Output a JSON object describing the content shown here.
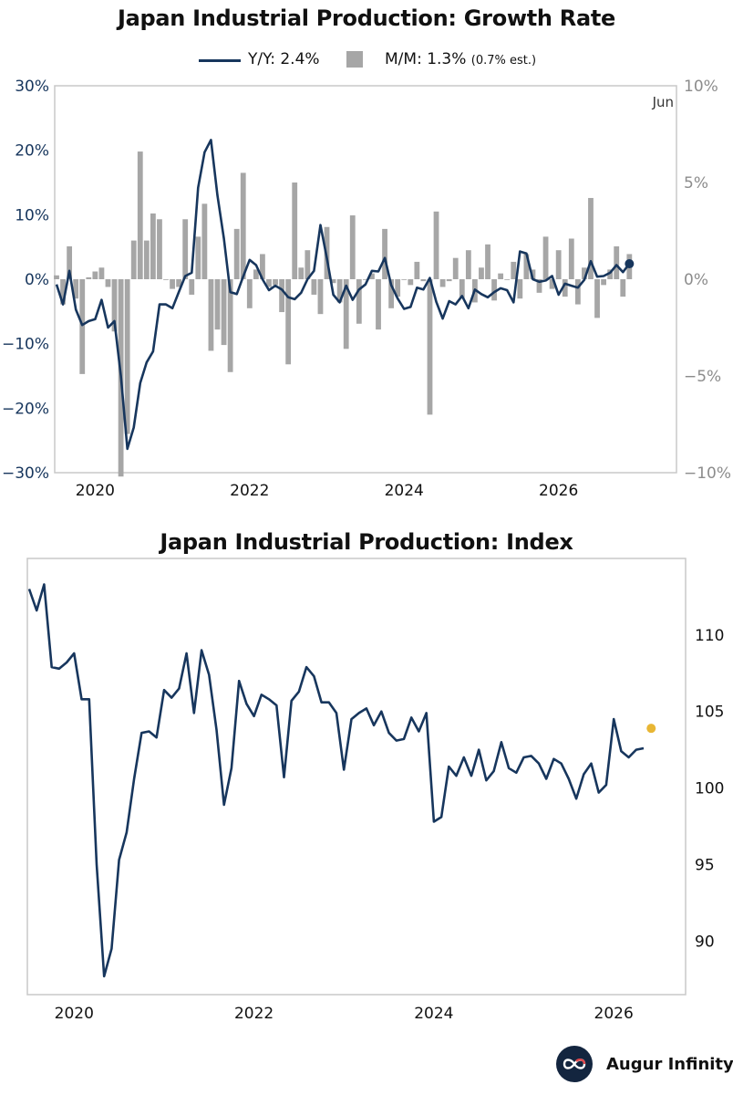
{
  "chart_data": [
    {
      "type": "bar+line",
      "title": "Japan Industrial Production: Growth Rate",
      "legend": {
        "placement": "top",
        "line_label": "Y/Y: 2.4%",
        "bar_label": "M/M: 1.3%",
        "bar_note": "(0.7% est.)"
      },
      "annotation": "Jun",
      "x_ticks": [
        "2020",
        "2022",
        "2024",
        "2026"
      ],
      "y_left": {
        "ticks": [
          "30%",
          "20%",
          "10%",
          "0%",
          "−10%",
          "−20%",
          "−30%"
        ],
        "range": [
          -30,
          30
        ]
      },
      "y_right": {
        "ticks": [
          "10%",
          "5%",
          "0%",
          "−5%",
          "−10%"
        ],
        "range": [
          -10,
          10
        ]
      },
      "grid": false,
      "x_start": "2019-07",
      "series": [
        {
          "name": "Y/Y",
          "axis": "left",
          "color": "#17365d",
          "values": [
            -0.8,
            -3.9,
            1.3,
            -4.7,
            -7.1,
            -6.5,
            -6.2,
            -3.2,
            -7.5,
            -6.5,
            -15.0,
            -26.3,
            -23.0,
            -16.1,
            -12.9,
            -11.2,
            -3.9,
            -3.9,
            -4.5,
            -2.0,
            0.5,
            1.0,
            14.2,
            19.7,
            21.6,
            13.0,
            6.3,
            -2.0,
            -2.3,
            0.4,
            3.0,
            2.2,
            0.0,
            -1.7,
            -1.0,
            -1.6,
            -2.8,
            -3.1,
            -2.1,
            0.0,
            1.3,
            8.4,
            3.3,
            -2.4,
            -3.6,
            -1.0,
            -3.2,
            -1.6,
            -0.8,
            1.3,
            1.2,
            3.3,
            -0.9,
            -3.0,
            -4.6,
            -4.3,
            -1.3,
            -1.6,
            0.2,
            -3.5,
            -6.1,
            -3.4,
            -3.9,
            -2.6,
            -4.5,
            -1.6,
            -2.3,
            -2.8,
            -2.0,
            -1.4,
            -1.7,
            -3.6,
            4.3,
            4.0,
            0.0,
            -0.4,
            -0.2,
            0.5,
            -2.4,
            -0.7,
            -1.0,
            -1.3,
            -0.1,
            2.8,
            0.4,
            0.5,
            1.0,
            2.2,
            1.1,
            2.4
          ]
        },
        {
          "name": "M/M",
          "axis": "right",
          "color": "#a6a6a6",
          "values": [
            0.2,
            -1.3,
            1.7,
            -1.0,
            -4.9,
            0.1,
            0.4,
            0.6,
            -0.4,
            -2.7,
            -10.2,
            -8.0,
            2.0,
            6.6,
            2.0,
            3.4,
            3.1,
            0.0,
            -0.5,
            -0.4,
            3.1,
            -0.8,
            2.2,
            3.9,
            -3.7,
            -2.6,
            -3.4,
            -4.8,
            2.6,
            5.5,
            -1.5,
            0.5,
            1.3,
            -0.4,
            -0.3,
            -1.7,
            -4.4,
            5.0,
            0.6,
            1.5,
            -0.8,
            -1.8,
            2.7,
            -0.2,
            -1.2,
            -3.6,
            3.3,
            -2.3,
            0.0,
            0.3,
            -2.6,
            2.6,
            -1.5,
            -0.9,
            0.0,
            -0.3,
            0.9,
            -0.1,
            -7.0,
            3.5,
            -0.4,
            -0.1,
            1.1,
            -1.0,
            1.5,
            -1.2,
            0.6,
            1.8,
            -1.1,
            0.3,
            0.0,
            0.9,
            -1.0,
            1.3,
            0.5,
            -0.7,
            2.2,
            -0.5,
            1.5,
            -0.9,
            2.1,
            -1.3,
            0.6,
            4.2,
            -2.0,
            -0.3,
            0.5,
            1.7,
            -0.9,
            1.3
          ]
        }
      ]
    },
    {
      "type": "line",
      "title": "Japan Industrial Production: Index",
      "x_ticks": [
        "2020",
        "2022",
        "2024",
        "2026"
      ],
      "y_right": {
        "ticks": [
          "110",
          "105",
          "100",
          "95",
          "90"
        ],
        "range": [
          86.5,
          115
        ]
      },
      "grid": false,
      "x_start": "2019-07",
      "series": [
        {
          "name": "Index",
          "color": "#17365d",
          "last_point_color": "#e8b634",
          "values": [
            113.0,
            111.6,
            113.3,
            107.9,
            107.8,
            108.2,
            108.8,
            105.8,
            105.8,
            95.0,
            87.7,
            89.5,
            95.3,
            97.1,
            100.6,
            103.6,
            103.7,
            103.3,
            106.4,
            105.9,
            106.5,
            108.8,
            104.9,
            109.0,
            107.4,
            103.8,
            98.9,
            101.3,
            107.0,
            105.5,
            104.7,
            106.1,
            105.8,
            105.4,
            100.7,
            105.7,
            106.3,
            107.9,
            107.3,
            105.6,
            105.6,
            104.9,
            101.2,
            104.5,
            104.9,
            105.2,
            104.1,
            105.0,
            103.6,
            103.1,
            103.2,
            104.6,
            103.7,
            104.9,
            97.8,
            98.1,
            101.4,
            100.8,
            102.0,
            100.8,
            102.5,
            100.5,
            101.1,
            103.0,
            101.3,
            101.0,
            102.0,
            102.1,
            101.6,
            100.6,
            101.9,
            101.6,
            100.6,
            99.3,
            100.9,
            101.6,
            99.7,
            100.2,
            104.5,
            102.4,
            102.0,
            102.5,
            102.6,
            103.9
          ]
        }
      ]
    }
  ],
  "brand": {
    "name": "Augur Infinity"
  }
}
